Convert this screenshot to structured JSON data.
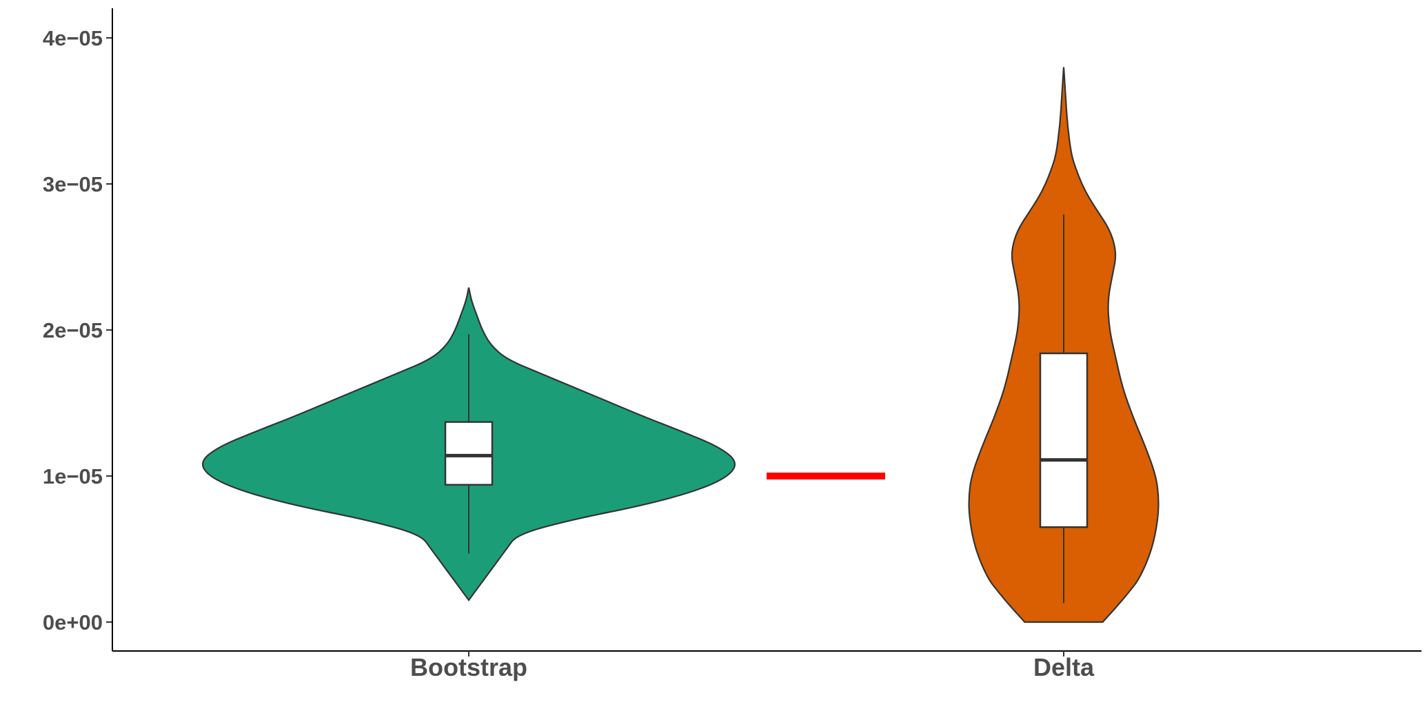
{
  "chart_data": {
    "type": "violin",
    "title": "",
    "xlabel": "",
    "ylabel": "",
    "categories": [
      "Bootstrap",
      "Delta"
    ],
    "y_ticks": [
      "0e+00",
      "1e−05",
      "2e−05",
      "3e−05",
      "4e−05"
    ],
    "y_tick_values": [
      0,
      1e-05,
      2e-05,
      3e-05,
      4e-05
    ],
    "ylim": [
      -2e-06,
      4.2e-05
    ],
    "grid": false,
    "legend": "none",
    "reference_line": {
      "value": 1e-05,
      "color": "#ff0000"
    },
    "series": [
      {
        "category": "Bootstrap",
        "color": "#1b9e77",
        "box": {
          "whisker_low": 4.7e-06,
          "q1": 9.4e-06,
          "median": 1.14e-05,
          "q3": 1.37e-05,
          "whisker_high": 1.97e-05
        },
        "density": [
          [
            1.5e-06,
            0.0
          ],
          [
            2e-06,
            0.02
          ],
          [
            3e-06,
            0.06
          ],
          [
            4e-06,
            0.1
          ],
          [
            5e-06,
            0.14
          ],
          [
            6e-06,
            0.18
          ],
          [
            7e-06,
            0.38
          ],
          [
            8e-06,
            0.65
          ],
          [
            9e-06,
            0.85
          ],
          [
            1e-05,
            0.97
          ],
          [
            1.1e-05,
            1.0
          ],
          [
            1.2e-05,
            0.93
          ],
          [
            1.3e-05,
            0.8
          ],
          [
            1.4e-05,
            0.66
          ],
          [
            1.5e-05,
            0.53
          ],
          [
            1.6e-05,
            0.4
          ],
          [
            1.7e-05,
            0.27
          ],
          [
            1.8e-05,
            0.14
          ],
          [
            1.9e-05,
            0.08
          ],
          [
            2e-05,
            0.05
          ],
          [
            2.1e-05,
            0.03
          ],
          [
            2.2e-05,
            0.01
          ],
          [
            2.29e-05,
            0.0
          ]
        ]
      },
      {
        "category": "Delta",
        "color": "#d95f02",
        "box": {
          "whisker_low": 1.3e-06,
          "q1": 6.5e-06,
          "median": 1.11e-05,
          "q3": 1.84e-05,
          "whisker_high": 2.79e-05
        },
        "density": [
          [
            0.0,
            0.41
          ],
          [
            1e-06,
            0.55
          ],
          [
            2e-06,
            0.68
          ],
          [
            3e-06,
            0.8
          ],
          [
            5e-06,
            0.93
          ],
          [
            7e-06,
            0.99
          ],
          [
            8.5e-06,
            1.0
          ],
          [
            1e-05,
            0.97
          ],
          [
            1.2e-05,
            0.86
          ],
          [
            1.4e-05,
            0.73
          ],
          [
            1.6e-05,
            0.62
          ],
          [
            1.8e-05,
            0.55
          ],
          [
            2e-05,
            0.48
          ],
          [
            2.2e-05,
            0.46
          ],
          [
            2.4e-05,
            0.52
          ],
          [
            2.5e-05,
            0.55
          ],
          [
            2.6e-05,
            0.53
          ],
          [
            2.7e-05,
            0.47
          ],
          [
            2.8e-05,
            0.37
          ],
          [
            2.9e-05,
            0.27
          ],
          [
            3e-05,
            0.19
          ],
          [
            3.1e-05,
            0.13
          ],
          [
            3.2e-05,
            0.08
          ],
          [
            3.4e-05,
            0.04
          ],
          [
            3.6e-05,
            0.02
          ],
          [
            3.8e-05,
            0.0
          ]
        ]
      }
    ]
  }
}
